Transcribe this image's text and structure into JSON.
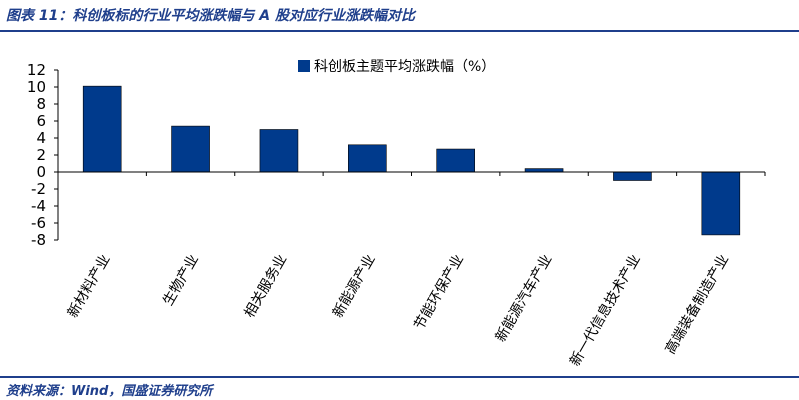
{
  "figure_title": "图表 11：科创板标的行业平均涨跌幅与 A 股对应行业涨跌幅对比",
  "source": "资料来源：Wind，国盛证券研究所",
  "colors": {
    "bar": "#003a8c",
    "rule": "#1f3f8c",
    "axis": "#000000"
  },
  "chart_data": {
    "type": "bar",
    "categories": [
      "新材料产业",
      "生物产业",
      "相关服务业",
      "新能源产业",
      "节能环保产业",
      "新能源汽车产业",
      "新一代信息技术产业",
      "高端装备制造产业"
    ],
    "series": [
      {
        "name": "科创板主题平均涨跌幅（%）",
        "values": [
          10.1,
          5.4,
          5.0,
          3.2,
          2.7,
          0.4,
          -1.0,
          -7.4
        ]
      }
    ],
    "yticks": [
      12,
      10,
      8,
      6,
      4,
      2,
      0,
      -2,
      -4,
      -6,
      -8
    ],
    "ylim": [
      -8,
      12
    ],
    "legend_position": "top-center",
    "grid": false
  }
}
